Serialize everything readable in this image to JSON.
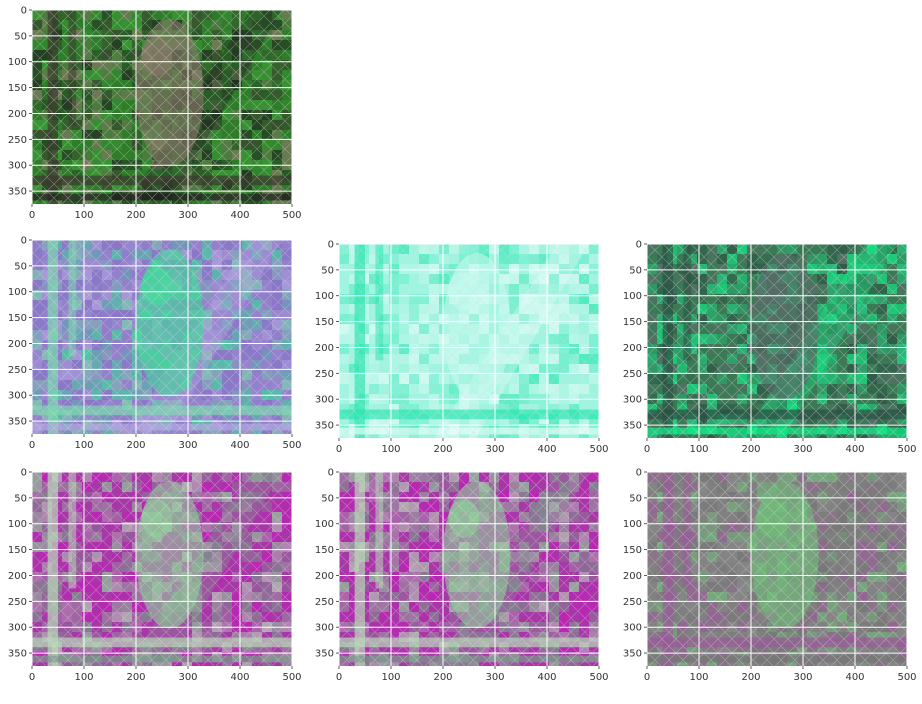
{
  "chart_data": [
    {
      "type": "heatmap",
      "title": "",
      "xlabel": "",
      "ylabel": "",
      "xlim": [
        0,
        500
      ],
      "ylim": [
        375,
        0
      ],
      "xticks": [
        "0",
        "100",
        "200",
        "300",
        "400",
        "500"
      ],
      "yticks": [
        "0",
        "50",
        "100",
        "150",
        "200",
        "250",
        "300",
        "350"
      ],
      "grid": true,
      "content": "lynx-photo-original",
      "colors": [
        "#2f7d2a",
        "#3fa03a",
        "#8a7a6a",
        "#3b3a2e",
        "#1f1f1f"
      ]
    },
    {
      "type": "heatmap",
      "title": "",
      "xlabel": "",
      "ylabel": "",
      "xlim": [
        0,
        500
      ],
      "ylim": [
        375,
        0
      ],
      "xticks": [
        "0",
        "100",
        "200",
        "300",
        "400",
        "500"
      ],
      "yticks": [
        "0",
        "50",
        "100",
        "150",
        "200",
        "250",
        "300",
        "350"
      ],
      "grid": true,
      "content": "feature-map-1",
      "colors": [
        "#8a78c8",
        "#9a88d0",
        "#3fe09a",
        "#7fd8b0",
        "#b4a8e0"
      ]
    },
    {
      "type": "heatmap",
      "title": "",
      "xlabel": "",
      "ylabel": "",
      "xlim": [
        0,
        500
      ],
      "ylim": [
        375,
        0
      ],
      "xticks": [
        "0",
        "100",
        "200",
        "300",
        "400",
        "500"
      ],
      "yticks": [
        "0",
        "50",
        "100",
        "150",
        "200",
        "250",
        "300",
        "350"
      ],
      "grid": true,
      "content": "feature-map-2",
      "colors": [
        "#9ff5e0",
        "#5fefca",
        "#c8faf0",
        "#2ee6b0",
        "#e6fdf8"
      ]
    },
    {
      "type": "heatmap",
      "title": "",
      "xlabel": "",
      "ylabel": "",
      "xlim": [
        0,
        500
      ],
      "ylim": [
        375,
        0
      ],
      "xticks": [
        "0",
        "100",
        "200",
        "300",
        "400",
        "500"
      ],
      "yticks": [
        "0",
        "50",
        "100",
        "150",
        "200",
        "250",
        "300",
        "350"
      ],
      "grid": true,
      "content": "feature-map-3",
      "colors": [
        "#3a7a55",
        "#1fd98a",
        "#5a6e6a",
        "#2c5044",
        "#10f08a"
      ]
    },
    {
      "type": "heatmap",
      "title": "",
      "xlabel": "",
      "ylabel": "",
      "xlim": [
        0,
        500
      ],
      "ylim": [
        375,
        0
      ],
      "xticks": [
        "0",
        "100",
        "200",
        "300",
        "400",
        "500"
      ],
      "yticks": [
        "0",
        "50",
        "100",
        "150",
        "200",
        "250",
        "300",
        "350"
      ],
      "grid": true,
      "content": "feature-map-4",
      "colors": [
        "#a838a8",
        "#c020b8",
        "#8fd09a",
        "#b8d8b8",
        "#7a9a8a"
      ]
    },
    {
      "type": "heatmap",
      "title": "",
      "xlabel": "",
      "ylabel": "",
      "xlim": [
        0,
        500
      ],
      "ylim": [
        375,
        0
      ],
      "xticks": [
        "0",
        "100",
        "200",
        "300",
        "400",
        "500"
      ],
      "yticks": [
        "0",
        "50",
        "100",
        "150",
        "200",
        "250",
        "300",
        "350"
      ],
      "grid": true,
      "content": "feature-map-5",
      "colors": [
        "#a838a8",
        "#c020b8",
        "#8fd09a",
        "#b8d8b8",
        "#7a9a8a"
      ]
    },
    {
      "type": "heatmap",
      "title": "",
      "xlabel": "",
      "ylabel": "",
      "xlim": [
        0,
        500
      ],
      "ylim": [
        375,
        0
      ],
      "xticks": [
        "0",
        "100",
        "200",
        "300",
        "400",
        "500"
      ],
      "yticks": [
        "0",
        "50",
        "100",
        "150",
        "200",
        "250",
        "300",
        "350"
      ],
      "grid": true,
      "content": "feature-map-6",
      "colors": [
        "#808080",
        "#8a8a8a",
        "#6fc07a",
        "#9a5a9a",
        "#767676"
      ]
    }
  ]
}
